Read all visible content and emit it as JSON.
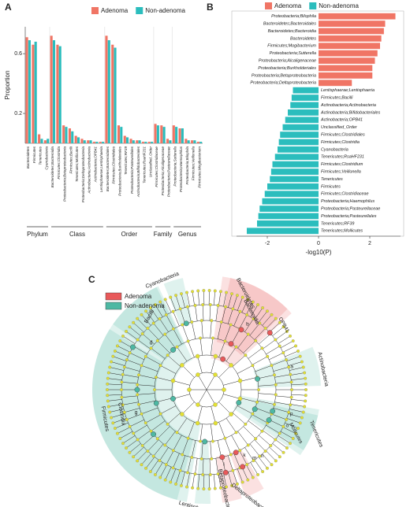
{
  "chart_data": [
    {
      "type": "bar",
      "panel_label": "A",
      "ylabel": "Proportion",
      "ylim": [
        0,
        0.78
      ],
      "yticks": [
        0.2,
        0.6
      ],
      "legend": "top",
      "groups": [
        {
          "label": "Phylum",
          "categories": [
            "Bacteroidetes",
            "Firmicutes",
            "Tenericutes",
            "Cyanobacteria"
          ]
        },
        {
          "label": "Class",
          "categories": [
            "Bacteroidetes;Bacteroidia",
            "Firmicutes;Clostridia",
            "Proteobacteria;Betaproteobacteria",
            "Firmicutes;Bacilli",
            "Tenericutes;Mollicutes",
            "Proteobacteria;Deltaproteobacteria",
            "Actinobacteria;Actinobacteria",
            "Actinobacteria;OPB41",
            "Lentisphaerae;Lentisphaeria"
          ]
        },
        {
          "label": "Order",
          "categories": [
            "Bacteroidetes;Bacteroidales",
            "Firmicutes;Clostridiales",
            "Proteobacteria;Burkholderiales",
            "Tenericutes;RF39",
            "Proteobacteria;Pasteurellales",
            "Actinobacteria;Bifidobacteriales",
            "Tenericutes;RsaHF231",
            "Unclassified_Order"
          ]
        },
        {
          "label": "Family",
          "categories": [
            "Firmicutes;Clostridiaceae",
            "Proteobacteria;Alcaligenaceae",
            "Proteobacteria;Pasteurellaceae"
          ]
        },
        {
          "label": "Genus",
          "categories": [
            "Proteobacteria;Sutterella",
            "Proteobacteria;Haemophilus",
            "Proteobacteria;Bilophila",
            "Firmicutes;Veillonella",
            "Firmicutes;Mogibacterium"
          ]
        }
      ],
      "series": [
        {
          "name": "Adenoma",
          "color": "#f07565",
          "values": [
            0.71,
            0.66,
            0.06,
            0.02,
            0.72,
            0.66,
            0.12,
            0.1,
            0.05,
            0.03,
            0.02,
            0.01,
            0.01,
            0.72,
            0.66,
            0.12,
            0.05,
            0.03,
            0.02,
            0.01,
            0.01,
            0.13,
            0.12,
            0.03,
            0.12,
            0.1,
            0.03,
            0.02,
            0.01
          ]
        },
        {
          "name": "Non-adenoma",
          "color": "#2bbdbd",
          "values": [
            0.69,
            0.68,
            0.03,
            0.03,
            0.69,
            0.65,
            0.11,
            0.08,
            0.04,
            0.02,
            0.02,
            0.01,
            0.01,
            0.69,
            0.64,
            0.11,
            0.04,
            0.02,
            0.02,
            0.01,
            0.01,
            0.12,
            0.11,
            0.02,
            0.11,
            0.1,
            0.02,
            0.02,
            0.01
          ]
        }
      ]
    },
    {
      "type": "hbar",
      "panel_label": "B",
      "xlabel": "-log10(P)",
      "xlim": [
        -3.2,
        3.2
      ],
      "xticks": [
        -2,
        0,
        2
      ],
      "legend": "top",
      "series": [
        {
          "name": "Adenoma",
          "color": "#f07565",
          "categories": [
            "Proteobacteria;Bilophila",
            "Bacteroidetes;Bacteroidales",
            "Bacteroidetes;Bacteroidia",
            "Bacteroidetes",
            "Firmicutes;Mogibacterium",
            "Proteobacteria;Sutterella",
            "Proteobacteria;Alcaligenaceae",
            "Proteobacteria;Burkholderiales",
            "Proteobacteria;Betaproteobacteria",
            "Proteobacteria;Deltaproteobacteria"
          ],
          "values": [
            3.0,
            2.6,
            2.55,
            2.45,
            2.4,
            2.3,
            2.2,
            2.1,
            2.1,
            1.3
          ]
        },
        {
          "name": "Non-adenoma",
          "color": "#2bbdbd",
          "categories": [
            "Lentisphaerae;Lentisphaeria",
            "Firmicutes;Bacilli",
            "Actinobacteria;Actinobacteria",
            "Actinobacteria;Bifidobacteriales",
            "Actinobacteria;OPB41",
            "Unclassified_Order",
            "Firmicutes;Clostridiales",
            "Firmicutes;Clostridia",
            "Cyanobacteria",
            "Tenericutes;RsaHF231",
            "Firmicutes;Clostridium",
            "Firmicutes;Veillonella",
            "Tenericutes",
            "Firmicutes",
            "Firmicutes;Clostridiaceae",
            "Proteobacteria;Haemophilus",
            "Proteobacteria;Pasteurellaceae",
            "Proteobacteria;Pasteurellales",
            "Tenericutes;RF39",
            "Tenericutes;Mollicutes"
          ],
          "values": [
            -1.0,
            -1.05,
            -1.1,
            -1.2,
            -1.3,
            -1.4,
            -1.5,
            -1.55,
            -1.6,
            -1.7,
            -1.8,
            -1.85,
            -1.9,
            -2.0,
            -2.1,
            -2.2,
            -2.3,
            -2.35,
            -2.4,
            -2.8
          ]
        }
      ]
    }
  ],
  "cladogram": {
    "panel_label": "C",
    "legend": [
      {
        "name": "Adenoma",
        "color": "#e8595a"
      },
      {
        "name": "Non-adenoma",
        "color": "#4db8a3"
      }
    ],
    "labels": [
      "Cyanobacteria",
      "Bacilli",
      "Bacteroidetes",
      "Bacteroidia",
      "b",
      "OPB41",
      "Actinobacteria",
      "a",
      "Tenericutes",
      "Mollicutes",
      "p",
      "o",
      "n",
      "m",
      "Deltaproteobacteria",
      "Betaproteobacteria",
      "Lentisphaera",
      "Firmicutes",
      "Clostridia",
      "g",
      "d",
      "k",
      "i",
      "l"
    ]
  }
}
